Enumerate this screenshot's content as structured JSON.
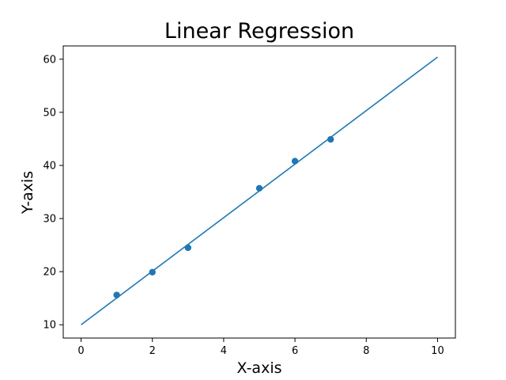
{
  "chart_data": {
    "type": "scatter",
    "title": "Linear Regression",
    "xlabel": "X-axis",
    "ylabel": "Y-axis",
    "xlim": [
      -0.5,
      10.5
    ],
    "ylim": [
      7.5,
      62.5
    ],
    "x_ticks": [
      0,
      2,
      4,
      6,
      8,
      10
    ],
    "x_tick_labels": [
      "0",
      "2",
      "4",
      "6",
      "8",
      "10"
    ],
    "y_ticks": [
      10,
      20,
      30,
      40,
      50,
      60
    ],
    "y_tick_labels": [
      "10",
      "20",
      "30",
      "40",
      "50",
      "60"
    ],
    "grid": false,
    "series": [
      {
        "kind": "scatter",
        "x": [
          1,
          2,
          3,
          5,
          6,
          7
        ],
        "y": [
          15.6,
          19.9,
          24.5,
          35.7,
          40.8,
          44.9
        ],
        "color": "#1f77b4"
      },
      {
        "kind": "line",
        "x": [
          0,
          10
        ],
        "y": [
          10.0,
          60.4
        ],
        "color": "#1f77b4"
      }
    ]
  }
}
